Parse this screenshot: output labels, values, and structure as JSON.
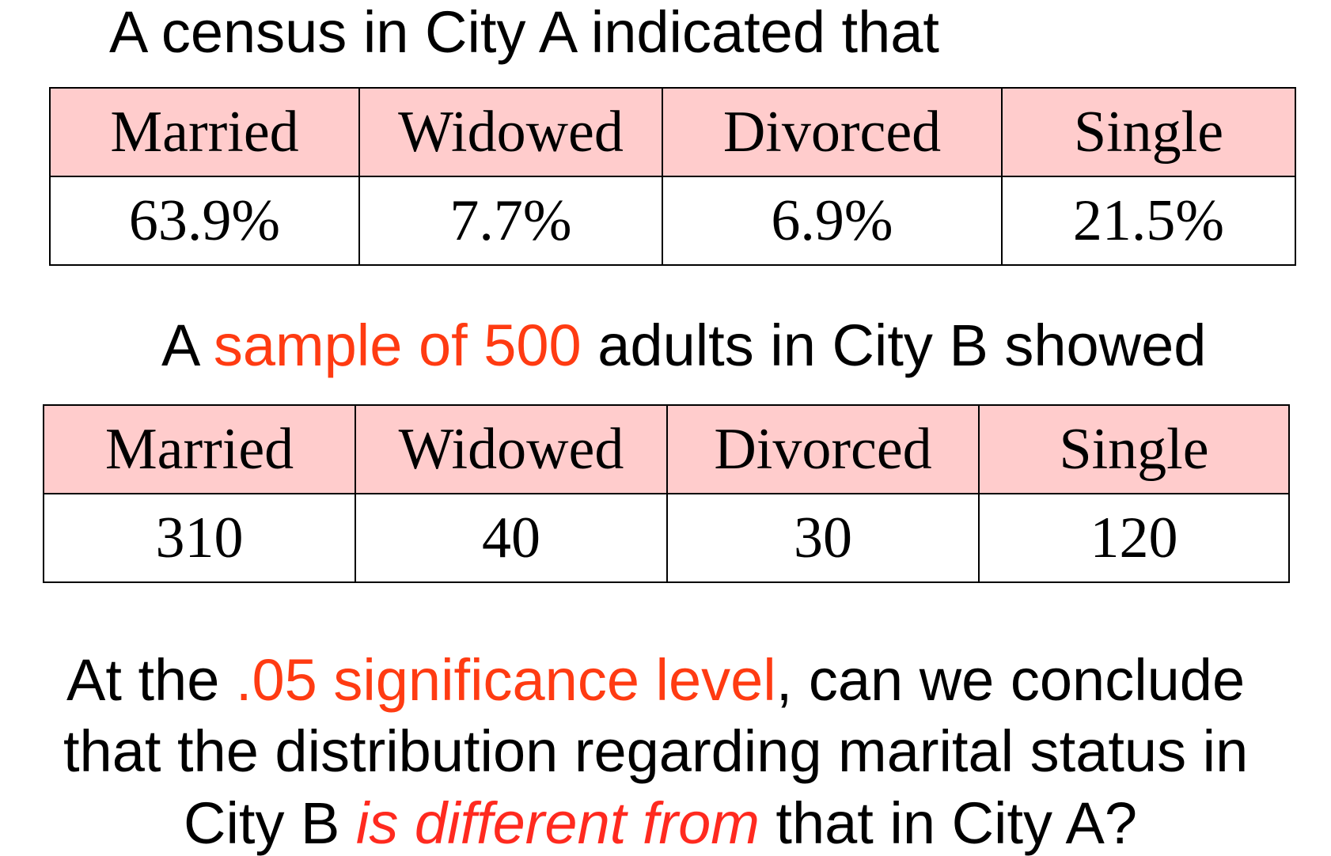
{
  "intro_a": "A census in City A indicated that",
  "table_a": {
    "headers": [
      "Married",
      "Widowed",
      "Divorced",
      "Single"
    ],
    "values": [
      "63.9%",
      "7.7%",
      "6.9%",
      "21.5%"
    ]
  },
  "intro_b": {
    "prefix": "A ",
    "highlight": "sample of 500",
    "suffix": " adults in City B showed"
  },
  "table_b": {
    "headers": [
      "Married",
      "Widowed",
      "Divorced",
      "Single"
    ],
    "values": [
      "310",
      "40",
      "30",
      "120"
    ]
  },
  "question": {
    "line1_prefix": "At the ",
    "line1_highlight": ".05 significance level",
    "line1_suffix": ", can we conclude",
    "line2": "that the distribution regarding marital status in",
    "line3_prefix": "City B ",
    "line3_highlight": "is different from",
    "line3_suffix": " that in City A?"
  },
  "colors": {
    "header_fill": "#ffcccc",
    "highlight": "#ff3b12",
    "highlight_italic": "#ff2a1f"
  }
}
